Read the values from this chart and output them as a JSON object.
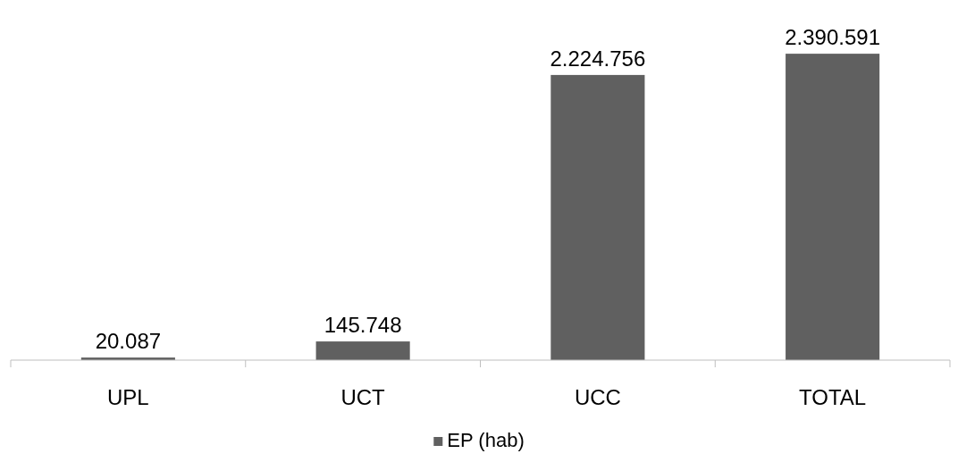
{
  "chart_data": {
    "type": "bar",
    "categories": [
      "UPL",
      "UCT",
      "UCC",
      "TOTAL"
    ],
    "series": [
      {
        "name": "EP (hab)",
        "color": "#606060",
        "values": [
          20087,
          145748,
          2224756,
          2390591
        ],
        "value_labels": [
          "20.087",
          "145.748",
          "2.224.756",
          "2.390.591"
        ]
      }
    ],
    "legend": "bottom"
  }
}
